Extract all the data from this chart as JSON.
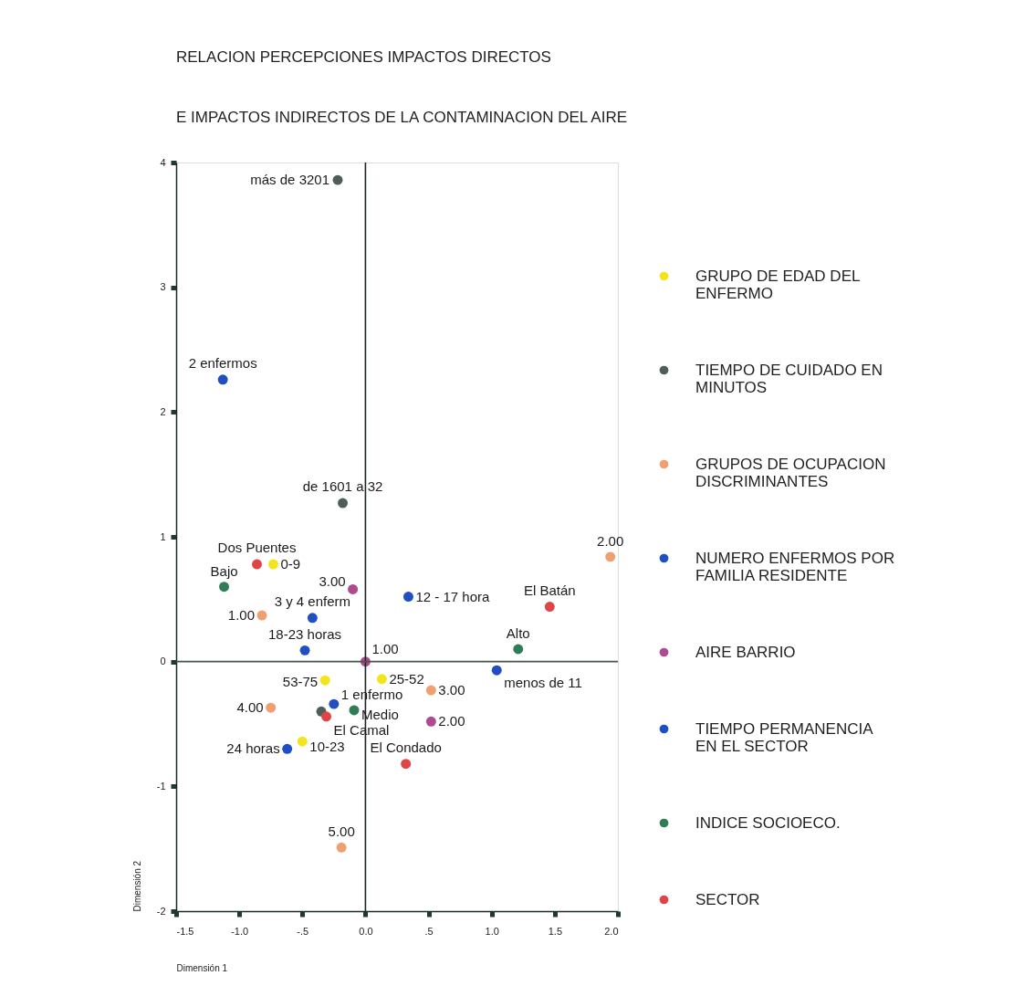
{
  "chart_data": {
    "type": "scatter",
    "title": "RELACION PERCEPCIONES IMPACTOS DIRECTOS\nE IMPACTOS INDIRECTOS DE LA CONTAMINACION DEL AIRE",
    "xlabel": "Dimensión 1",
    "ylabel": "Dimensión 2",
    "xlim": [
      -1.5,
      2.0
    ],
    "ylim": [
      -2,
      4
    ],
    "xticks": [
      -1.5,
      {
        "value": -1.0,
        "label": "-1.0"
      },
      {
        "value": -0.5,
        "label": "-.5"
      },
      {
        "value": 0,
        "label": "0.0"
      },
      {
        "value": 0.5,
        "label": ".5"
      },
      {
        "value": 1.0,
        "label": "1.0"
      },
      1.5,
      {
        "value": 2.0,
        "label": "2.0"
      }
    ],
    "yticks": [
      -2,
      -1,
      0,
      1,
      2,
      3,
      4
    ],
    "grid": false,
    "legend": "right",
    "marker": "circle",
    "ref_lines": [
      {
        "axis": "x",
        "value": 0,
        "color": "#1c2622"
      },
      {
        "axis": "y",
        "value": 0,
        "color": "#46544d"
      }
    ],
    "series": [
      {
        "name": "GRUPO DE EDAD DEL\nENFERMO",
        "color": "#f2e51c",
        "x": [
          -0.73,
          -0.32,
          0.13,
          -0.5
        ],
        "values": [
          0.78,
          -0.15,
          -0.14,
          -0.64
        ]
      },
      {
        "name": "TIEMPO DE CUIDADO EN\nMINUTOS",
        "color": "#4f5f57",
        "x": [
          -0.22,
          -0.18,
          -0.35
        ],
        "values": [
          3.86,
          1.27,
          -0.4
        ]
      },
      {
        "name": "GRUPOS DE OCUPACION\nDISCRIMINANTES",
        "color": "#f0a070",
        "x": [
          -0.82,
          1.94,
          0.52,
          -0.75,
          -0.19
        ],
        "values": [
          0.37,
          0.84,
          -0.23,
          -0.37,
          -1.49
        ]
      },
      {
        "name": "NUMERO ENFERMOS POR\nFAMILIA RESIDENTE",
        "color": "#1f4fc0",
        "x": [
          -1.13,
          -0.42,
          -0.25
        ],
        "values": [
          2.26,
          0.35,
          -0.34
        ]
      },
      {
        "name": "AIRE BARRIO",
        "color": "#b04a90",
        "x": [
          0.0,
          0.52,
          -0.1
        ],
        "values": [
          0.0,
          -0.48,
          0.58
        ]
      },
      {
        "name": "TIEMPO PERMANENCIA\nEN EL SECTOR",
        "color": "#1f4fc0",
        "x": [
          0.34,
          -0.48,
          -0.62,
          1.04
        ],
        "values": [
          0.52,
          0.09,
          -0.7,
          -0.07
        ]
      },
      {
        "name": "INDICE SOCIOECO.",
        "color": "#2e7d55",
        "x": [
          -1.12,
          -0.09,
          1.21
        ],
        "values": [
          0.6,
          -0.39,
          0.1
        ]
      },
      {
        "name": "SECTOR",
        "color": "#e04545",
        "x": [
          -0.86,
          -0.31,
          0.32,
          1.46
        ],
        "values": [
          0.78,
          -0.44,
          -0.82,
          0.44
        ]
      }
    ],
    "annotations": [
      {
        "text": "0-9",
        "x": -0.73,
        "y": 0.78
      },
      {
        "text": "53-75",
        "x": -0.32,
        "y": -0.15
      },
      {
        "text": "25-52",
        "x": 0.13,
        "y": -0.14
      },
      {
        "text": "10-23",
        "x": -0.5,
        "y": -0.64
      },
      {
        "text": "más de 3201",
        "x": -0.22,
        "y": 3.86
      },
      {
        "text": "de 1601 a 32",
        "x": -0.18,
        "y": 1.27
      },
      {
        "text": "1.00",
        "x": -0.82,
        "y": 0.37
      },
      {
        "text": "2.00",
        "x": 1.94,
        "y": 0.84
      },
      {
        "text": "3.00",
        "x": 0.52,
        "y": -0.23
      },
      {
        "text": "4.00",
        "x": -0.75,
        "y": -0.37
      },
      {
        "text": "5.00",
        "x": -0.19,
        "y": -1.49
      },
      {
        "text": "2 enfermos",
        "x": -1.13,
        "y": 2.26
      },
      {
        "text": "3 y 4 enferm",
        "x": -0.42,
        "y": 0.35
      },
      {
        "text": "1 enfermo",
        "x": -0.25,
        "y": -0.34
      },
      {
        "text": "1.00",
        "x": 0.0,
        "y": 0.0
      },
      {
        "text": "2.00",
        "x": 0.52,
        "y": -0.48
      },
      {
        "text": "3.00",
        "x": -0.1,
        "y": 0.58
      },
      {
        "text": "12 - 17 hora",
        "x": 0.34,
        "y": 0.52
      },
      {
        "text": "18-23 horas",
        "x": -0.48,
        "y": 0.09
      },
      {
        "text": "24 horas",
        "x": -0.62,
        "y": -0.7
      },
      {
        "text": "menos de 11",
        "x": 1.04,
        "y": -0.07
      },
      {
        "text": "Bajo",
        "x": -1.12,
        "y": 0.6
      },
      {
        "text": "Medio",
        "x": -0.09,
        "y": -0.39
      },
      {
        "text": "Alto",
        "x": 1.21,
        "y": 0.1
      },
      {
        "text": "Dos Puentes",
        "x": -0.86,
        "y": 0.78
      },
      {
        "text": "El Camal",
        "x": -0.31,
        "y": -0.44
      },
      {
        "text": "El Condado",
        "x": 0.32,
        "y": -0.82
      },
      {
        "text": "El Batán",
        "x": 1.46,
        "y": 0.44
      }
    ]
  }
}
